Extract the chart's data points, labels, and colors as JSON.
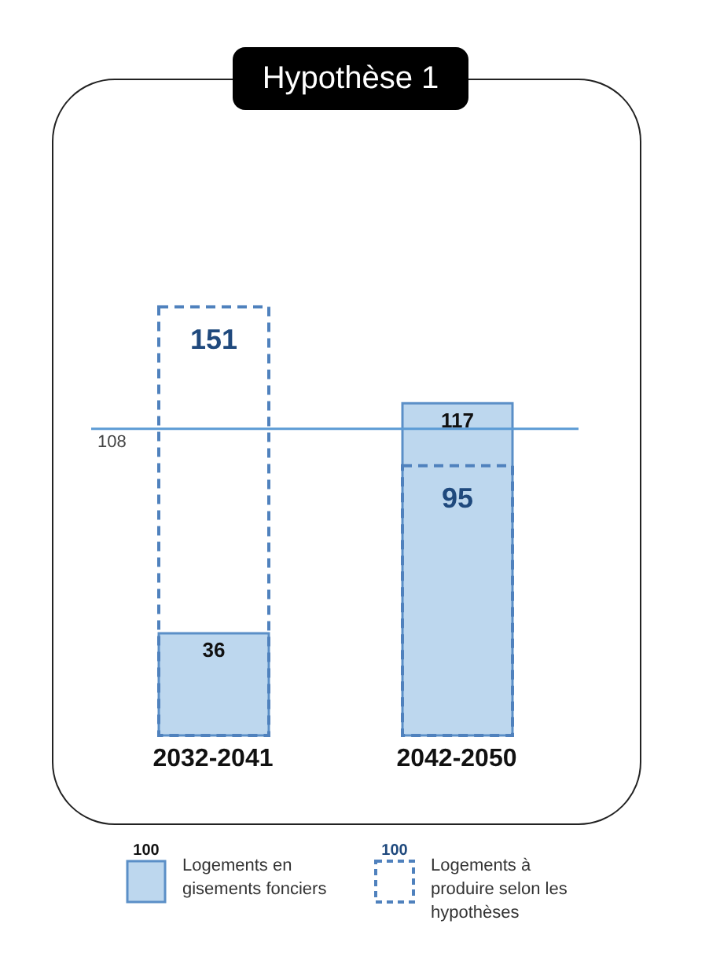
{
  "chart_data": {
    "type": "bar",
    "title": "Hypothèse 1",
    "categories": [
      "2032-2041",
      "2042-2050"
    ],
    "series": [
      {
        "name": "Logements en gisements fonciers",
        "color": "#bdd7ee",
        "values": [
          36,
          117
        ]
      },
      {
        "name": "Logements à produire selon les hypothèses",
        "color": "#4f81bd",
        "line_style": "dashed",
        "values": [
          151,
          95
        ]
      }
    ],
    "ref_lines": [
      {
        "axis": "y",
        "value": 108,
        "label": "108",
        "color": "#5b9bd5"
      }
    ],
    "annotations": [
      "100",
      "100"
    ],
    "data_labels": true,
    "legend": "bottom",
    "grid": false
  }
}
